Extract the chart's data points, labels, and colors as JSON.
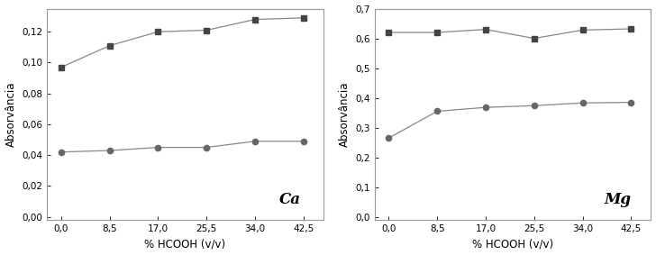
{
  "x": [
    0.0,
    8.5,
    17.0,
    25.5,
    34.0,
    42.5
  ],
  "ca_square": [
    0.097,
    0.111,
    0.12,
    0.121,
    0.128,
    0.129
  ],
  "ca_circle": [
    0.042,
    0.043,
    0.045,
    0.045,
    0.049,
    0.049
  ],
  "mg_square": [
    0.62,
    0.62,
    0.63,
    0.6,
    0.628,
    0.632
  ],
  "mg_circle": [
    0.265,
    0.355,
    0.368,
    0.374,
    0.383,
    0.385
  ],
  "ca_ylim": [
    -0.002,
    0.135
  ],
  "ca_yticks": [
    0.0,
    0.02,
    0.04,
    0.06,
    0.08,
    0.1,
    0.12
  ],
  "mg_ylim": [
    -0.01,
    0.7
  ],
  "mg_yticks": [
    0.0,
    0.1,
    0.2,
    0.3,
    0.4,
    0.5,
    0.6,
    0.7
  ],
  "xticks": [
    0.0,
    8.5,
    17.0,
    25.5,
    34.0,
    42.5
  ],
  "xlabel": "% HCOOH (v/v)",
  "ylabel": "Absorvância",
  "ca_label": "Ca",
  "mg_label": "Mg",
  "line_color": "#888888",
  "square_color": "#444444",
  "circle_color": "#666666",
  "bg_color": "#ffffff",
  "spine_color": "#999999"
}
